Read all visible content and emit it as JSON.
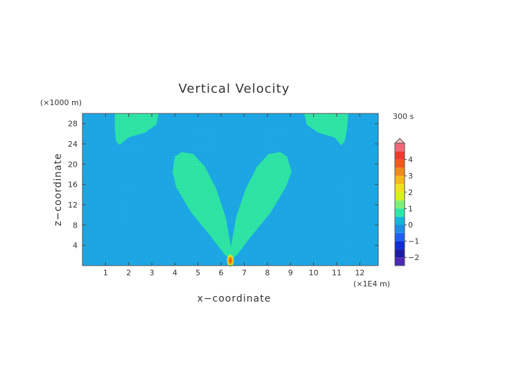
{
  "chart_data": {
    "type": "heatmap",
    "title": "Vertical Velocity",
    "xlabel": "x−coordinate",
    "ylabel": "z−coordinate",
    "x_unit": "(×1E4 m)",
    "y_unit": "(×1000 m)",
    "time_label": "300 s",
    "xlim": [
      0,
      12.8
    ],
    "ylim": [
      0,
      30
    ],
    "x_ticks": [
      1,
      2,
      3,
      4,
      5,
      6,
      7,
      8,
      9,
      10,
      11,
      12
    ],
    "y_ticks": [
      4,
      8,
      12,
      16,
      20,
      24,
      28
    ],
    "colorbar": {
      "ticks": [
        4,
        3,
        2,
        1,
        0,
        -1,
        -2
      ],
      "tick_labels": [
        "4",
        "3",
        "2",
        "1",
        "0",
        "−1",
        "−2"
      ],
      "levels": [
        -2.5,
        -2,
        -1.5,
        -1,
        -0.5,
        0,
        0.5,
        1,
        1.5,
        2,
        2.5,
        3,
        3.5,
        4,
        4.5,
        5
      ],
      "colors": [
        "#7a2ecc",
        "#4b2ab8",
        "#1c1aa6",
        "#0f2dd4",
        "#1f5ff0",
        "#1c8fe8",
        "#16b5dc",
        "#2ee6a6",
        "#7ef07a",
        "#d8f020",
        "#f0e020",
        "#f5b81c",
        "#f08a18",
        "#f05a18",
        "#f03a30",
        "#f06878",
        "#f7b8b8"
      ],
      "background_color": "#1ca8e6",
      "field_color": "#2ee6a6"
    },
    "features": [
      {
        "name": "left-upper-lobe",
        "level": 0.5,
        "x": [
          1.4,
          3.3
        ],
        "z": [
          23.5,
          30
        ]
      },
      {
        "name": "right-upper-lobe",
        "level": 0.5,
        "x": [
          9.6,
          11.5
        ],
        "z": [
          23.5,
          30
        ]
      },
      {
        "name": "left-plume-arm",
        "level": 0.5,
        "x": [
          3.9,
          6.4
        ],
        "z": [
          1,
          22.5
        ]
      },
      {
        "name": "right-plume-arm",
        "level": 0.5,
        "x": [
          6.4,
          9.1
        ],
        "z": [
          1,
          22.5
        ]
      },
      {
        "name": "central-updraft-core",
        "level": 2,
        "x": [
          6.3,
          6.5
        ],
        "z": [
          0,
          2
        ]
      }
    ]
  }
}
